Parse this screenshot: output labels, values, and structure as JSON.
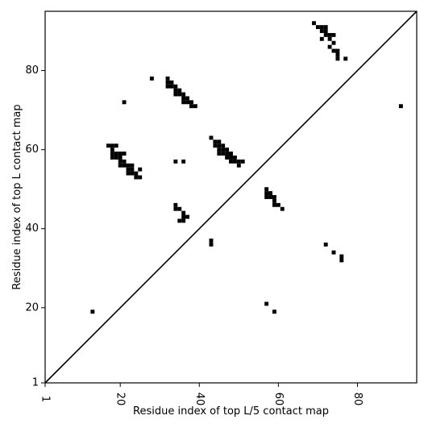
{
  "chart_data": {
    "type": "scatter",
    "title": "",
    "xlabel": "Residue index of top L/5 contact map",
    "ylabel": "Residue index of top L contact map",
    "xlim": [
      1,
      95
    ],
    "ylim": [
      1,
      95
    ],
    "x_ticks": [
      1,
      20,
      40,
      60,
      80
    ],
    "y_ticks": [
      1,
      20,
      40,
      60,
      80
    ],
    "x_tick_rotation_deg": -90,
    "diagonal": true,
    "grid": false,
    "marker": "square",
    "marker_color": "#000000",
    "series": [
      {
        "points": [
          [
            13,
            19
          ],
          [
            21,
            72
          ],
          [
            28,
            78
          ],
          [
            17,
            61
          ],
          [
            18,
            61
          ],
          [
            19,
            61
          ],
          [
            18,
            60
          ],
          [
            18,
            59
          ],
          [
            19,
            59
          ],
          [
            20,
            59
          ],
          [
            21,
            59
          ],
          [
            18,
            58
          ],
          [
            19,
            58
          ],
          [
            20,
            58
          ],
          [
            20,
            57
          ],
          [
            21,
            57
          ],
          [
            20,
            56
          ],
          [
            21,
            56
          ],
          [
            22,
            56
          ],
          [
            23,
            56
          ],
          [
            22,
            55
          ],
          [
            23,
            55
          ],
          [
            25,
            55
          ],
          [
            22,
            54
          ],
          [
            23,
            54
          ],
          [
            24,
            54
          ],
          [
            24,
            53
          ],
          [
            25,
            53
          ],
          [
            32,
            78
          ],
          [
            32,
            77
          ],
          [
            33,
            77
          ],
          [
            32,
            76
          ],
          [
            33,
            76
          ],
          [
            34,
            76
          ],
          [
            34,
            75
          ],
          [
            35,
            75
          ],
          [
            34,
            74
          ],
          [
            35,
            74
          ],
          [
            36,
            74
          ],
          [
            36,
            73
          ],
          [
            37,
            73
          ],
          [
            36,
            72
          ],
          [
            37,
            72
          ],
          [
            38,
            72
          ],
          [
            38,
            71
          ],
          [
            39,
            71
          ],
          [
            34,
            57
          ],
          [
            36,
            57
          ],
          [
            43,
            63
          ],
          [
            44,
            62
          ],
          [
            45,
            62
          ],
          [
            44,
            61
          ],
          [
            45,
            61
          ],
          [
            46,
            61
          ],
          [
            45,
            60
          ],
          [
            46,
            60
          ],
          [
            47,
            60
          ],
          [
            45,
            59
          ],
          [
            46,
            59
          ],
          [
            47,
            59
          ],
          [
            48,
            59
          ],
          [
            47,
            58
          ],
          [
            48,
            58
          ],
          [
            49,
            58
          ],
          [
            48,
            57
          ],
          [
            49,
            57
          ],
          [
            50,
            57
          ],
          [
            51,
            57
          ],
          [
            50,
            56
          ],
          [
            34,
            46
          ],
          [
            34,
            45
          ],
          [
            35,
            45
          ],
          [
            36,
            44
          ],
          [
            36,
            43
          ],
          [
            37,
            43
          ],
          [
            35,
            42
          ],
          [
            36,
            42
          ],
          [
            43,
            37
          ],
          [
            43,
            36
          ],
          [
            57,
            50
          ],
          [
            57,
            49
          ],
          [
            58,
            49
          ],
          [
            57,
            48
          ],
          [
            58,
            48
          ],
          [
            59,
            48
          ],
          [
            59,
            47
          ],
          [
            59,
            46
          ],
          [
            60,
            46
          ],
          [
            61,
            45
          ],
          [
            57,
            21
          ],
          [
            59,
            19
          ],
          [
            69,
            92
          ],
          [
            70,
            91
          ],
          [
            71,
            91
          ],
          [
            72,
            91
          ],
          [
            71,
            90
          ],
          [
            72,
            90
          ],
          [
            72,
            89
          ],
          [
            73,
            89
          ],
          [
            74,
            89
          ],
          [
            71,
            88
          ],
          [
            73,
            88
          ],
          [
            74,
            87
          ],
          [
            73,
            86
          ],
          [
            74,
            85
          ],
          [
            75,
            85
          ],
          [
            75,
            84
          ],
          [
            75,
            83
          ],
          [
            77,
            83
          ],
          [
            72,
            36
          ],
          [
            74,
            34
          ],
          [
            76,
            33
          ],
          [
            76,
            32
          ],
          [
            91,
            71
          ]
        ]
      }
    ]
  }
}
